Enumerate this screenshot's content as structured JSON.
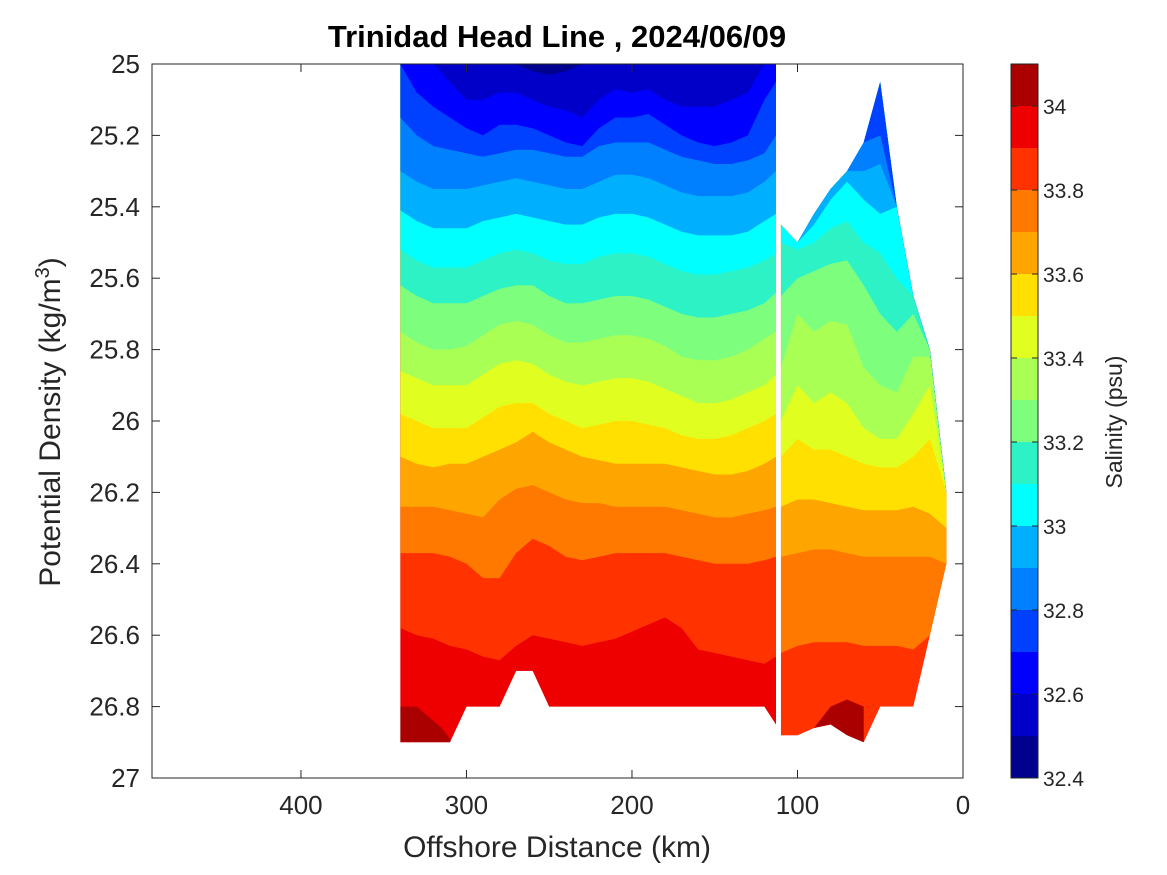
{
  "chart_data": {
    "type": "contour",
    "title": "Trinidad Head Line , 2024/06/09",
    "xlabel": "Offshore Distance (km)",
    "ylabel": "Potential Density (kg/m",
    "ylabel_sup": "3",
    "ylabel_end": ")",
    "xlim": [
      490,
      0
    ],
    "ylim": [
      25,
      27
    ],
    "x_reversed": true,
    "y_reversed": true,
    "xticks": [
      400,
      300,
      200,
      100,
      0
    ],
    "xtick_labels": [
      "400",
      "300",
      "200",
      "100",
      "0"
    ],
    "yticks": [
      25,
      25.2,
      25.4,
      25.6,
      25.8,
      26,
      26.2,
      26.4,
      26.6,
      26.8,
      27
    ],
    "ytick_labels": [
      "25",
      "25.2",
      "25.4",
      "25.6",
      "25.8",
      "26",
      "26.2",
      "26.4",
      "26.6",
      "26.8",
      "27"
    ],
    "colorbar": {
      "label": "Salinity (psu)",
      "range": [
        32.4,
        34.1
      ],
      "ticks": [
        32.4,
        32.6,
        32.8,
        33,
        33.2,
        33.4,
        33.6,
        33.8,
        34
      ],
      "tick_labels": [
        "32.4",
        "32.6",
        "32.8",
        "33",
        "33.2",
        "33.4",
        "33.6",
        "33.8",
        "34"
      ],
      "levels": [
        32.4,
        32.5,
        32.6,
        32.7,
        32.8,
        32.9,
        33.0,
        33.1,
        33.2,
        33.3,
        33.4,
        33.5,
        33.6,
        33.7,
        33.8,
        33.9,
        34.0,
        34.1
      ],
      "colors": [
        "#00008f",
        "#0000c8",
        "#0000ff",
        "#0040ff",
        "#0080ff",
        "#00b0ff",
        "#00ffff",
        "#2cf2c6",
        "#7dff7d",
        "#aaff55",
        "#e0ff20",
        "#ffe000",
        "#ffa500",
        "#ff7800",
        "#ff3200",
        "#ee0000",
        "#aa0000"
      ]
    },
    "sections": [
      {
        "x": [
          340,
          330,
          320,
          310,
          300,
          290,
          280,
          270,
          260,
          250,
          240,
          230,
          220,
          210,
          200,
          190,
          180,
          170,
          160,
          150,
          140,
          130,
          120,
          113
        ],
        "top": [
          25,
          25,
          25,
          25,
          25,
          25,
          25,
          25,
          25,
          25,
          25,
          25,
          25,
          25,
          25,
          25,
          25,
          25,
          25,
          25,
          25,
          25,
          25,
          25
        ],
        "bottom": [
          26.9,
          26.9,
          26.9,
          26.9,
          26.8,
          26.8,
          26.8,
          26.7,
          26.7,
          26.8,
          26.8,
          26.8,
          26.8,
          26.8,
          26.8,
          26.8,
          26.8,
          26.8,
          26.8,
          26.8,
          26.8,
          26.8,
          26.8,
          26.85
        ],
        "isohalines": [
          {
            "level": 32.5,
            "depth": [
              25,
              25,
              25,
              25,
              25,
              25,
              25,
              25,
              25.02,
              25.03,
              25.02,
              25.0,
              25,
              25,
              25,
              25,
              25,
              25,
              25,
              25,
              25,
              25,
              25,
              25
            ]
          },
          {
            "level": 32.6,
            "depth": [
              25,
              25,
              25,
              25.05,
              25.1,
              25.1,
              25.08,
              25.08,
              25.1,
              25.12,
              25.13,
              25.15,
              25.1,
              25.07,
              25.08,
              25.07,
              25.1,
              25.12,
              25.12,
              25.12,
              25.1,
              25.08,
              25.0,
              25.0
            ]
          },
          {
            "level": 32.7,
            "depth": [
              25.0,
              25.08,
              25.12,
              25.15,
              25.18,
              25.2,
              25.17,
              25.17,
              25.18,
              25.2,
              25.22,
              25.23,
              25.18,
              25.15,
              25.15,
              25.14,
              25.17,
              25.2,
              25.22,
              25.23,
              25.22,
              25.2,
              25.1,
              25.05
            ]
          },
          {
            "level": 32.8,
            "depth": [
              25.15,
              25.2,
              25.23,
              25.24,
              25.25,
              25.26,
              25.25,
              25.24,
              25.24,
              25.25,
              25.26,
              25.26,
              25.23,
              25.22,
              25.22,
              25.22,
              25.24,
              25.26,
              25.27,
              25.28,
              25.28,
              25.27,
              25.25,
              25.2
            ]
          },
          {
            "level": 32.9,
            "depth": [
              25.3,
              25.33,
              25.35,
              25.35,
              25.35,
              25.34,
              25.33,
              25.32,
              25.33,
              25.34,
              25.35,
              25.35,
              25.33,
              25.31,
              25.31,
              25.32,
              25.34,
              25.36,
              25.37,
              25.37,
              25.37,
              25.36,
              25.33,
              25.3
            ]
          },
          {
            "level": 33.0,
            "depth": [
              25.41,
              25.44,
              25.46,
              25.46,
              25.46,
              25.44,
              25.43,
              25.42,
              25.43,
              25.44,
              25.45,
              25.45,
              25.43,
              25.42,
              25.42,
              25.43,
              25.45,
              25.47,
              25.48,
              25.48,
              25.48,
              25.47,
              25.44,
              25.42
            ]
          },
          {
            "level": 33.1,
            "depth": [
              25.52,
              25.55,
              25.57,
              25.57,
              25.57,
              25.55,
              25.53,
              25.52,
              25.53,
              25.55,
              25.56,
              25.56,
              25.54,
              25.53,
              25.53,
              25.54,
              25.56,
              25.58,
              25.59,
              25.59,
              25.58,
              25.57,
              25.55,
              25.53
            ]
          },
          {
            "level": 33.2,
            "depth": [
              25.62,
              25.65,
              25.67,
              25.67,
              25.67,
              25.65,
              25.63,
              25.62,
              25.62,
              25.65,
              25.67,
              25.67,
              25.66,
              25.65,
              25.65,
              25.66,
              25.68,
              25.7,
              25.71,
              25.71,
              25.7,
              25.69,
              25.67,
              25.64
            ]
          },
          {
            "level": 33.3,
            "depth": [
              25.75,
              25.78,
              25.8,
              25.8,
              25.79,
              25.76,
              25.73,
              25.72,
              25.73,
              25.76,
              25.78,
              25.78,
              25.77,
              25.76,
              25.76,
              25.77,
              25.79,
              25.82,
              25.83,
              25.83,
              25.82,
              25.8,
              25.77,
              25.75
            ]
          },
          {
            "level": 33.4,
            "depth": [
              25.86,
              25.88,
              25.9,
              25.9,
              25.9,
              25.87,
              25.84,
              25.83,
              25.84,
              25.87,
              25.89,
              25.9,
              25.89,
              25.88,
              25.88,
              25.89,
              25.91,
              25.93,
              25.95,
              25.95,
              25.94,
              25.92,
              25.9,
              25.87
            ]
          },
          {
            "level": 33.5,
            "depth": [
              25.98,
              26.0,
              26.02,
              26.02,
              26.02,
              25.99,
              25.96,
              25.95,
              25.95,
              25.98,
              26.0,
              26.02,
              26.01,
              26.0,
              26.0,
              26.01,
              26.02,
              26.04,
              26.05,
              26.05,
              26.04,
              26.02,
              26.0,
              25.98
            ]
          },
          {
            "level": 33.6,
            "depth": [
              26.1,
              26.12,
              26.13,
              26.12,
              26.12,
              26.1,
              26.08,
              26.06,
              26.03,
              26.06,
              26.08,
              26.1,
              26.11,
              26.12,
              26.12,
              26.12,
              26.12,
              26.13,
              26.14,
              26.15,
              26.15,
              26.14,
              26.12,
              26.1
            ]
          },
          {
            "level": 33.7,
            "depth": [
              26.24,
              26.24,
              26.24,
              26.25,
              26.26,
              26.27,
              26.22,
              26.19,
              26.18,
              26.2,
              26.22,
              26.23,
              26.23,
              26.24,
              26.24,
              26.24,
              26.24,
              26.25,
              26.26,
              26.27,
              26.27,
              26.26,
              26.25,
              26.24
            ]
          },
          {
            "level": 33.8,
            "depth": [
              26.37,
              26.37,
              26.37,
              26.38,
              26.4,
              26.44,
              26.44,
              26.37,
              26.33,
              26.35,
              26.38,
              26.39,
              26.38,
              26.37,
              26.37,
              26.37,
              26.37,
              26.38,
              26.39,
              26.4,
              26.4,
              26.4,
              26.39,
              26.38
            ]
          },
          {
            "level": 33.9,
            "depth": [
              26.58,
              26.6,
              26.61,
              26.63,
              26.64,
              26.66,
              26.67,
              26.63,
              26.6,
              26.61,
              26.62,
              26.63,
              26.62,
              26.61,
              26.59,
              26.57,
              26.55,
              26.58,
              26.64,
              26.65,
              26.66,
              26.67,
              26.68,
              26.66
            ]
          },
          {
            "level": 34.0,
            "depth": [
              26.8,
              26.82,
              26.86,
              26.9,
              26.9,
              26.9,
              26.9,
              26.9,
              26.9,
              26.9,
              26.9,
              26.9,
              26.9,
              26.9,
              26.9,
              26.9,
              26.9,
              26.9,
              26.9,
              26.9,
              26.9,
              26.9,
              26.9,
              26.85
            ]
          }
        ]
      },
      {
        "x": [
          110,
          100,
          90,
          80,
          70,
          60,
          50,
          40,
          30,
          20,
          10
        ],
        "top": [
          25.45,
          25.5,
          25.42,
          25.35,
          25.3,
          25.22,
          25.05,
          25.4,
          25.65,
          25.8,
          26.2
        ],
        "bottom": [
          26.88,
          26.88,
          26.86,
          26.85,
          26.88,
          26.9,
          26.8,
          26.8,
          26.8,
          26.6,
          26.4
        ],
        "isohalines": [
          {
            "level": 32.8,
            "depth": [
              25.4,
              25.5,
              25.42,
              25.35,
              25.3,
              25.22,
              25.2,
              25.4,
              25.65,
              25.8,
              26.2
            ]
          },
          {
            "level": 32.9,
            "depth": [
              25.4,
              25.5,
              25.42,
              25.35,
              25.3,
              25.3,
              25.28,
              25.4,
              25.65,
              25.8,
              26.2
            ]
          },
          {
            "level": 33.0,
            "depth": [
              25.45,
              25.5,
              25.45,
              25.38,
              25.33,
              25.38,
              25.42,
              25.4,
              25.65,
              25.8,
              26.2
            ]
          },
          {
            "level": 33.1,
            "depth": [
              25.5,
              25.52,
              25.5,
              25.46,
              25.44,
              25.5,
              25.53,
              25.6,
              25.65,
              25.8,
              26.2
            ]
          },
          {
            "level": 33.2,
            "depth": [
              25.65,
              25.6,
              25.58,
              25.56,
              25.55,
              25.62,
              25.7,
              25.75,
              25.7,
              25.8,
              26.2
            ]
          },
          {
            "level": 33.3,
            "depth": [
              25.85,
              25.7,
              25.75,
              25.72,
              25.73,
              25.85,
              25.9,
              25.92,
              25.82,
              25.82,
              26.2
            ]
          },
          {
            "level": 33.4,
            "depth": [
              26.0,
              25.9,
              25.95,
              25.92,
              25.95,
              26.02,
              26.05,
              26.05,
              25.98,
              25.9,
              26.2
            ]
          },
          {
            "level": 33.5,
            "depth": [
              26.1,
              26.05,
              26.08,
              26.08,
              26.1,
              26.12,
              26.13,
              26.13,
              26.1,
              26.05,
              26.2
            ]
          },
          {
            "level": 33.6,
            "depth": [
              26.24,
              26.22,
              26.22,
              26.23,
              26.24,
              26.25,
              26.25,
              26.25,
              26.24,
              26.26,
              26.3
            ]
          },
          {
            "level": 33.7,
            "depth": [
              26.38,
              26.37,
              26.36,
              26.36,
              26.37,
              26.38,
              26.38,
              26.38,
              26.38,
              26.38,
              26.4
            ]
          },
          {
            "level": 33.8,
            "depth": [
              26.65,
              26.63,
              26.62,
              26.62,
              26.62,
              26.63,
              26.63,
              26.63,
              26.64,
              26.6,
              26.4
            ]
          },
          {
            "level": 33.9,
            "depth": [
              26.88,
              26.88,
              26.86,
              26.85,
              26.88,
              26.9,
              26.8,
              26.8,
              26.8,
              26.6,
              26.4
            ]
          }
        ],
        "deep_band": {
          "x": [
            110,
            100,
            90,
            80,
            70,
            60
          ],
          "depth": [
            26.88,
            26.88,
            26.86,
            26.8,
            26.78,
            26.8
          ]
        }
      }
    ]
  }
}
